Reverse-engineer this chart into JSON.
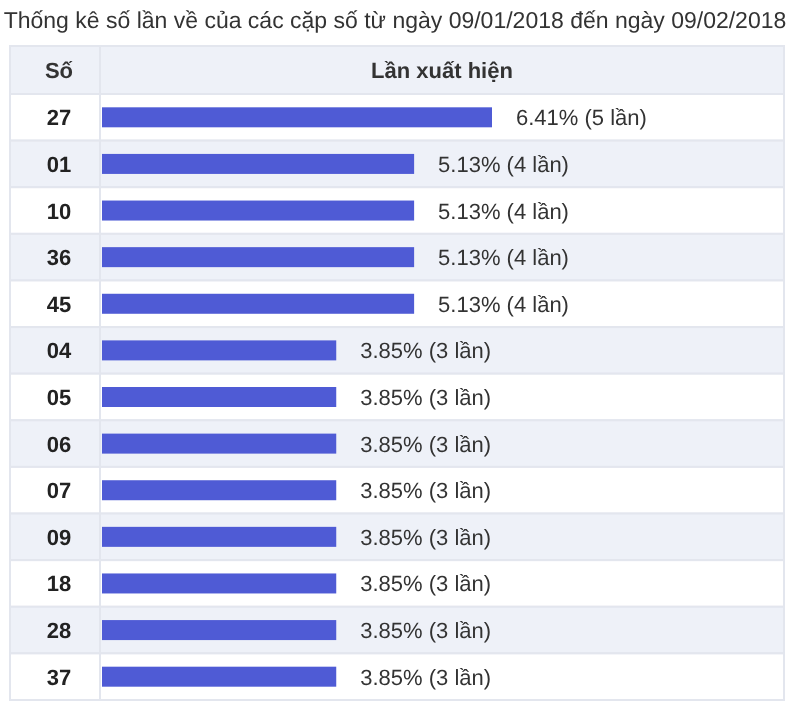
{
  "chart_data": {
    "type": "bar",
    "orientation": "horizontal",
    "title": "Thống kê số lần về của các cặp số từ ngày 09/01/2018 đến ngày 09/02/2018",
    "ylabel": "Số",
    "xlabel": "Lần xuất hiện",
    "categories": [
      "27",
      "01",
      "10",
      "36",
      "45",
      "04",
      "05",
      "06",
      "07",
      "09",
      "18",
      "28",
      "37"
    ],
    "values": [
      6.41,
      5.13,
      5.13,
      5.13,
      5.13,
      3.85,
      3.85,
      3.85,
      3.85,
      3.85,
      3.85,
      3.85,
      3.85
    ],
    "value_labels": [
      "6.41% (5 lần)",
      "5.13% (4 lần)",
      "5.13% (4 lần)",
      "5.13% (4 lần)",
      "5.13% (4 lần)",
      "3.85% (3 lần)",
      "3.85% (3 lần)",
      "3.85% (3 lần)",
      "3.85% (3 lần)",
      "3.85% (3 lần)",
      "3.85% (3 lần)",
      "3.85% (3 lần)",
      "3.85% (3 lần)"
    ],
    "color": "#4f5bd5"
  }
}
